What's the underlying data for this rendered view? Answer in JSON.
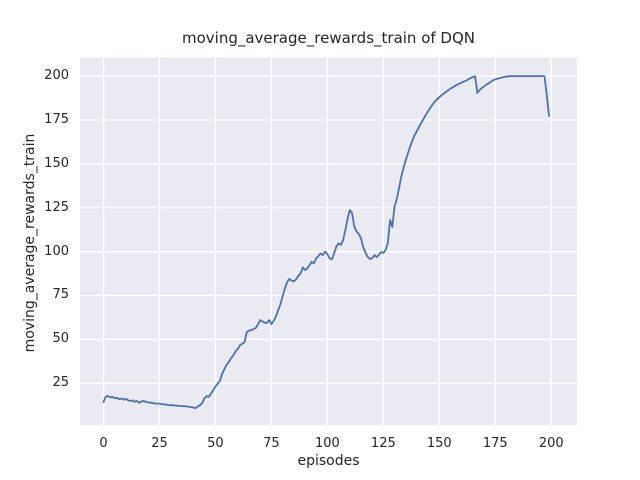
{
  "window": {
    "background": "#FFFFFF"
  },
  "chart_data": {
    "type": "line",
    "title": "moving_average_rewards_train of DQN",
    "xlabel": "episodes",
    "ylabel": "moving_average_rewards_train",
    "x_ticks": [
      0,
      25,
      50,
      75,
      100,
      125,
      150,
      175,
      200
    ],
    "y_ticks": [
      25,
      50,
      75,
      100,
      125,
      150,
      175,
      200
    ],
    "xlim": [
      -10.5,
      211.5
    ],
    "ylim": [
      1.2,
      210.6
    ],
    "grid": true,
    "legend": "none",
    "style": "seaborn-darkgrid",
    "colors": {
      "axes_background": "#EAEAF2",
      "grid": "#FFFFFF",
      "line": "#4C72B0",
      "text": "#262626",
      "figure_background": "#FFFFFF"
    },
    "series": [
      {
        "name": "moving_average_rewards_train",
        "x_start": 0,
        "x_step": 1,
        "values": [
          14.3,
          17.3,
          17.7,
          16.9,
          17.2,
          16.4,
          16.7,
          15.9,
          16.3,
          15.7,
          16.1,
          15.3,
          14.9,
          15.3,
          14.4,
          14.9,
          13.8,
          14.7,
          14.9,
          14.3,
          14.1,
          13.9,
          13.8,
          13.4,
          13.4,
          13.4,
          13.1,
          12.9,
          12.9,
          12.5,
          12.5,
          12.5,
          12.3,
          12.2,
          12.1,
          12.0,
          11.9,
          11.8,
          11.6,
          11.4,
          11.2,
          10.8,
          11.6,
          12.4,
          13.5,
          16.3,
          17.6,
          17.2,
          19.1,
          21.0,
          23.0,
          24.8,
          26.3,
          30.5,
          33.0,
          35.5,
          37.2,
          39.3,
          41.0,
          43.2,
          44.5,
          46.7,
          47.5,
          48.4,
          54.1,
          55.0,
          55.3,
          55.8,
          56.4,
          58.5,
          61.0,
          60.2,
          59.5,
          59.3,
          61.0,
          58.7,
          60.5,
          63.0,
          66.5,
          70.0,
          74.5,
          79.0,
          82.5,
          84.5,
          83.5,
          83.0,
          84.2,
          86.1,
          87.5,
          91.0,
          89.5,
          90.4,
          92.3,
          94.2,
          93.3,
          96.2,
          97.5,
          99.0,
          98.0,
          100.0,
          98.5,
          96.2,
          95.6,
          99.0,
          102.8,
          104.7,
          103.8,
          106.5,
          112.0,
          118.5,
          123.7,
          122.0,
          114.5,
          111.5,
          110.2,
          107.5,
          102.5,
          99.5,
          97.0,
          95.8,
          96.3,
          98.0,
          96.9,
          98.2,
          99.7,
          99.2,
          100.9,
          104.9,
          118.0,
          114.0,
          125.6,
          130.0,
          136.0,
          142.8,
          147.5,
          152.0,
          156.1,
          160.0,
          163.5,
          166.5,
          168.7,
          171.2,
          173.5,
          175.6,
          178.0,
          180.0,
          182.0,
          183.8,
          185.5,
          186.8,
          188.0,
          189.1,
          190.1,
          191.0,
          191.9,
          192.8,
          193.6,
          194.4,
          195.1,
          195.7,
          196.3,
          196.9,
          197.4,
          198.2,
          198.9,
          199.5,
          199.9,
          190.4,
          192.0,
          193.2,
          194.2,
          195.1,
          195.9,
          196.7,
          197.6,
          198.1,
          198.5,
          198.9,
          199.2,
          199.5,
          199.8,
          199.9,
          200,
          200,
          200,
          200,
          200,
          200,
          200,
          200,
          200,
          200,
          200,
          200,
          200,
          200,
          200,
          199.9,
          189.0,
          177.3
        ]
      }
    ]
  }
}
